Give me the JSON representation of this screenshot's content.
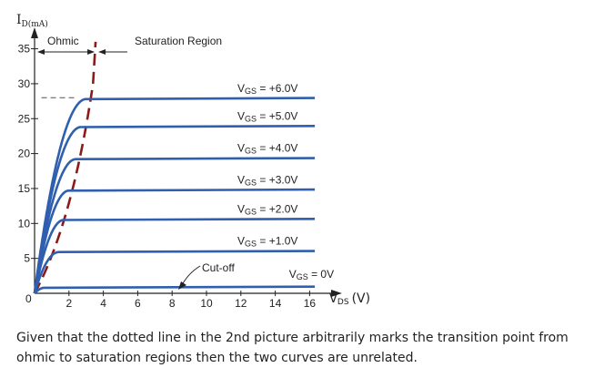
{
  "chart_data": {
    "type": "line",
    "title": "",
    "ylabel_main": "I",
    "ylabel_sub": "D(mA)",
    "xlabel_main": "V",
    "xlabel_sub": "DS",
    "xlabel_unit": "(V)",
    "xlim": [
      0,
      17.3
    ],
    "ylim": [
      0,
      36
    ],
    "x_ticks": [
      "2",
      "4",
      "6",
      "8",
      "10",
      "12",
      "14",
      "16"
    ],
    "y_ticks": [
      "5",
      "10",
      "15",
      "20",
      "25",
      "30",
      "35"
    ],
    "origin_label": "0",
    "grid": false,
    "series": [
      {
        "label_main": "V",
        "label_sub": "GS",
        "label_value": " = +6.0V",
        "sat_current": 27.8,
        "knee_v": 3.0
      },
      {
        "label_main": "V",
        "label_sub": "GS",
        "label_value": " = +5.0V",
        "sat_current": 23.8,
        "knee_v": 2.7
      },
      {
        "label_main": "V",
        "label_sub": "GS",
        "label_value": " = +4.0V",
        "sat_current": 19.2,
        "knee_v": 2.4
      },
      {
        "label_main": "V",
        "label_sub": "GS",
        "label_value": " = +3.0V",
        "sat_current": 14.7,
        "knee_v": 2.0
      },
      {
        "label_main": "V",
        "label_sub": "GS",
        "label_value": " = +2.0V",
        "sat_current": 10.5,
        "knee_v": 1.7
      },
      {
        "label_main": "V",
        "label_sub": "GS",
        "label_value": " = +1.0V",
        "sat_current": 5.9,
        "knee_v": 1.4
      },
      {
        "label_main": "V",
        "label_sub": "GS",
        "label_value": " = 0V",
        "sat_current": 0.8,
        "knee_v": 0.6
      }
    ],
    "annotations": {
      "ohmic": "Ohmic",
      "saturation": "Saturation Region",
      "cutoff": "Cut-off"
    },
    "boundary_color": "#8b1a1a",
    "curve_color": "#2f5fae"
  },
  "caption": "Given that the dotted line in the 2nd picture arbitrarily marks the transition point from ohmic to saturation regions then the two curves are unrelated."
}
